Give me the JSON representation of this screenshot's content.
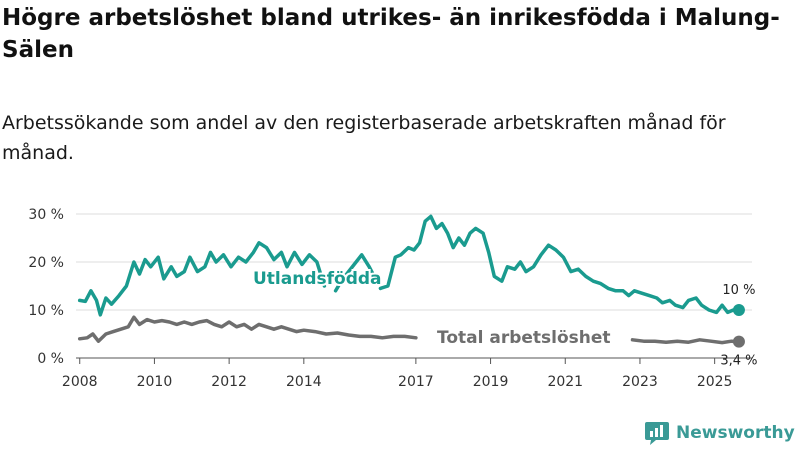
{
  "header": {
    "title": "Högre arbetslöshet bland utrikes- än inrikesfödda i Malung-Sälen",
    "subtitle": "Arbetssökande som andel av den registerbaserade arbetskraften månad för månad."
  },
  "brand": {
    "name": "Newsworthy",
    "color": "#3a9a96"
  },
  "colors": {
    "utlandsfodda": "#1a9b8f",
    "total": "#6e6e6e",
    "grid": "#dddddd"
  },
  "chart_data": {
    "type": "line",
    "title": "Högre arbetslöshet bland utrikes- än inrikesfödda i Malung-Sälen",
    "subtitle": "Arbetssökande som andel av den registerbaserade arbetskraften månad för månad.",
    "xlabel": "",
    "ylabel": "",
    "xlim": [
      2007.9,
      2026.0
    ],
    "ylim": [
      0,
      30
    ],
    "grid": true,
    "x_ticks": [
      2008,
      2010,
      2012,
      2014,
      2017,
      2019,
      2021,
      2023,
      2025
    ],
    "x_tick_labels": [
      "2008",
      "2010",
      "2012",
      "2014",
      "2017",
      "2019",
      "2021",
      "2023",
      "2025"
    ],
    "y_ticks": [
      0,
      10,
      20,
      30
    ],
    "y_tick_labels": [
      "0 %",
      "10 %",
      "20 %",
      "30 %"
    ],
    "series": [
      {
        "name": "Utlandsfödda",
        "label_text": "Utlandsfödda",
        "end_label": "10 %",
        "color": "#1a9b8f",
        "segments": [
          [
            [
              2008.0,
              12.0
            ],
            [
              2008.15,
              11.8
            ],
            [
              2008.3,
              14.0
            ],
            [
              2008.45,
              12.0
            ],
            [
              2008.55,
              9.0
            ],
            [
              2008.7,
              12.5
            ],
            [
              2008.85,
              11.2
            ],
            [
              2009.05,
              13.0
            ],
            [
              2009.25,
              15.0
            ],
            [
              2009.45,
              20.0
            ],
            [
              2009.6,
              17.5
            ],
            [
              2009.75,
              20.5
            ],
            [
              2009.9,
              19.0
            ],
            [
              2010.1,
              21.0
            ],
            [
              2010.25,
              16.5
            ],
            [
              2010.45,
              19.0
            ],
            [
              2010.6,
              17.0
            ],
            [
              2010.8,
              18.0
            ],
            [
              2010.95,
              21.0
            ],
            [
              2011.15,
              18.0
            ],
            [
              2011.35,
              19.0
            ],
            [
              2011.5,
              22.0
            ],
            [
              2011.65,
              20.0
            ],
            [
              2011.85,
              21.5
            ],
            [
              2012.05,
              19.0
            ],
            [
              2012.25,
              21.0
            ],
            [
              2012.45,
              20.0
            ],
            [
              2012.65,
              22.0
            ],
            [
              2012.8,
              24.0
            ],
            [
              2013.0,
              23.0
            ],
            [
              2013.2,
              20.5
            ],
            [
              2013.4,
              22.0
            ],
            [
              2013.55,
              19.0
            ],
            [
              2013.75,
              22.0
            ],
            [
              2013.95,
              19.5
            ],
            [
              2014.15,
              21.5
            ],
            [
              2014.35,
              20.0
            ],
            [
              2014.55,
              15.0
            ]
          ],
          [
            [
              2014.85,
              14.0
            ],
            [
              2015.0,
              16.0
            ],
            [
              2015.2,
              18.0
            ],
            [
              2015.4,
              20.0
            ],
            [
              2015.55,
              21.5
            ],
            [
              2015.75,
              19.0
            ],
            [
              2015.95,
              16.0
            ]
          ],
          [
            [
              2016.05,
              14.5
            ],
            [
              2016.25,
              15.0
            ],
            [
              2016.45,
              21.0
            ],
            [
              2016.6,
              21.5
            ],
            [
              2016.8,
              23.0
            ],
            [
              2016.95,
              22.5
            ],
            [
              2017.1,
              24.0
            ],
            [
              2017.25,
              28.5
            ],
            [
              2017.4,
              29.5
            ],
            [
              2017.55,
              27.0
            ],
            [
              2017.7,
              28.0
            ],
            [
              2017.85,
              26.0
            ],
            [
              2018.0,
              23.0
            ],
            [
              2018.15,
              25.0
            ],
            [
              2018.3,
              23.5
            ],
            [
              2018.45,
              26.0
            ],
            [
              2018.6,
              27.0
            ],
            [
              2018.8,
              26.0
            ],
            [
              2018.95,
              22.0
            ],
            [
              2019.1,
              17.0
            ],
            [
              2019.3,
              16.0
            ],
            [
              2019.45,
              19.0
            ],
            [
              2019.65,
              18.5
            ],
            [
              2019.8,
              20.0
            ],
            [
              2019.95,
              18.0
            ],
            [
              2020.15,
              19.0
            ],
            [
              2020.35,
              21.5
            ],
            [
              2020.55,
              23.5
            ],
            [
              2020.75,
              22.5
            ],
            [
              2020.95,
              21.0
            ],
            [
              2021.15,
              18.0
            ],
            [
              2021.35,
              18.5
            ],
            [
              2021.55,
              17.0
            ],
            [
              2021.75,
              16.0
            ],
            [
              2021.95,
              15.5
            ],
            [
              2022.15,
              14.5
            ],
            [
              2022.35,
              14.0
            ],
            [
              2022.55,
              14.0
            ],
            [
              2022.7,
              13.0
            ],
            [
              2022.85,
              14.0
            ],
            [
              2023.05,
              13.5
            ],
            [
              2023.25,
              13.0
            ],
            [
              2023.45,
              12.5
            ],
            [
              2023.6,
              11.5
            ],
            [
              2023.8,
              12.0
            ],
            [
              2023.95,
              11.0
            ],
            [
              2024.15,
              10.5
            ],
            [
              2024.3,
              12.0
            ],
            [
              2024.5,
              12.5
            ],
            [
              2024.65,
              11.0
            ],
            [
              2024.85,
              10.0
            ],
            [
              2025.05,
              9.5
            ],
            [
              2025.2,
              11.0
            ],
            [
              2025.35,
              9.5
            ],
            [
              2025.5,
              10.0
            ],
            [
              2025.65,
              10.0
            ]
          ]
        ]
      },
      {
        "name": "Total arbetslöshet",
        "label_text": "Total arbetslöshet",
        "end_label": "3,4 %",
        "color": "#6e6e6e",
        "segments": [
          [
            [
              2008.0,
              4.0
            ],
            [
              2008.2,
              4.2
            ],
            [
              2008.35,
              5.0
            ],
            [
              2008.5,
              3.5
            ],
            [
              2008.7,
              5.0
            ],
            [
              2008.9,
              5.5
            ],
            [
              2009.1,
              6.0
            ],
            [
              2009.3,
              6.5
            ],
            [
              2009.45,
              8.5
            ],
            [
              2009.6,
              7.0
            ],
            [
              2009.8,
              8.0
            ],
            [
              2010.0,
              7.5
            ],
            [
              2010.2,
              7.8
            ],
            [
              2010.4,
              7.5
            ],
            [
              2010.6,
              7.0
            ],
            [
              2010.8,
              7.5
            ],
            [
              2011.0,
              7.0
            ],
            [
              2011.2,
              7.5
            ],
            [
              2011.4,
              7.8
            ],
            [
              2011.6,
              7.0
            ],
            [
              2011.8,
              6.5
            ],
            [
              2012.0,
              7.5
            ],
            [
              2012.2,
              6.5
            ],
            [
              2012.4,
              7.0
            ],
            [
              2012.6,
              6.0
            ],
            [
              2012.8,
              7.0
            ],
            [
              2013.0,
              6.5
            ],
            [
              2013.2,
              6.0
            ],
            [
              2013.4,
              6.5
            ],
            [
              2013.6,
              6.0
            ],
            [
              2013.8,
              5.5
            ],
            [
              2014.0,
              5.8
            ],
            [
              2014.3,
              5.5
            ],
            [
              2014.6,
              5.0
            ],
            [
              2014.9,
              5.2
            ],
            [
              2015.2,
              4.8
            ],
            [
              2015.5,
              4.5
            ],
            [
              2015.8,
              4.5
            ],
            [
              2016.1,
              4.2
            ],
            [
              2016.4,
              4.5
            ],
            [
              2016.7,
              4.5
            ],
            [
              2017.0,
              4.2
            ]
          ],
          [
            [
              2022.8,
              3.8
            ],
            [
              2023.1,
              3.5
            ],
            [
              2023.4,
              3.5
            ],
            [
              2023.7,
              3.3
            ],
            [
              2024.0,
              3.5
            ],
            [
              2024.3,
              3.3
            ],
            [
              2024.6,
              3.8
            ],
            [
              2024.9,
              3.5
            ],
            [
              2025.2,
              3.2
            ],
            [
              2025.45,
              3.5
            ],
            [
              2025.65,
              3.4
            ]
          ]
        ]
      }
    ]
  }
}
